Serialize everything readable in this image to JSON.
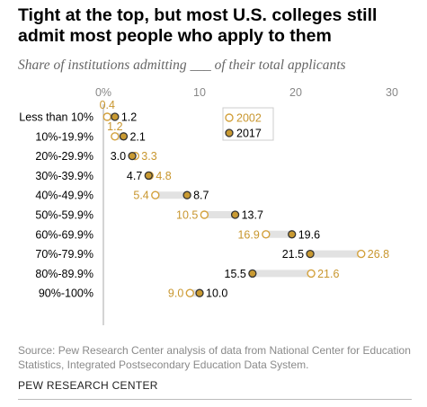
{
  "title": "Tight at the top, but most U.S. colleges still admit most people who apply to them",
  "subtitle": "Share of institutions admitting ___ of their total applicants",
  "source": "Source: Pew Research Center analysis of data from National Center for Education Statistics, Integrated Postsecondary Education Data System.",
  "org": "PEW RESEARCH CENTER",
  "colors": {
    "series_2002": "#d3a13c",
    "series_2017": "#c99a32",
    "dark_outline": "#333333",
    "connector": "#e2e2e2",
    "axis": "#aaaaaa",
    "tick_text": "#888888",
    "label_2017": "#000000",
    "label_2002": "#c8962e"
  },
  "chart_data": {
    "type": "dot_plot",
    "categories": [
      "Less than 10%",
      "10%-19.9%",
      "20%-29.9%",
      "30%-39.9%",
      "40%-49.9%",
      "50%-59.9%",
      "60%-69.9%",
      "70%-79.9%",
      "80%-89.9%",
      "90%-100%"
    ],
    "series": [
      {
        "name": "2002",
        "values": [
          0.4,
          1.2,
          3.3,
          4.8,
          5.4,
          10.5,
          16.9,
          26.8,
          21.6,
          9.0
        ],
        "labels": [
          "0.4",
          "1.2",
          "3.3",
          "4.8",
          "5.4",
          "10.5",
          "16.9",
          "26.8",
          "21.6",
          "9.0"
        ]
      },
      {
        "name": "2017",
        "values": [
          1.2,
          2.1,
          3.0,
          4.7,
          8.7,
          13.7,
          19.6,
          21.5,
          15.5,
          10.0
        ],
        "labels": [
          "1.2",
          "2.1",
          "3.0",
          "4.7",
          "8.7",
          "13.7",
          "19.6",
          "21.5",
          "15.5",
          "10.0"
        ]
      }
    ],
    "x_ticks": [
      0,
      10,
      20,
      30
    ],
    "x_tick_labels": [
      "0%",
      "10",
      "20",
      "30"
    ],
    "xlim": [
      0,
      30
    ],
    "grid": false,
    "legend_placement": "inside top-right of plot"
  }
}
